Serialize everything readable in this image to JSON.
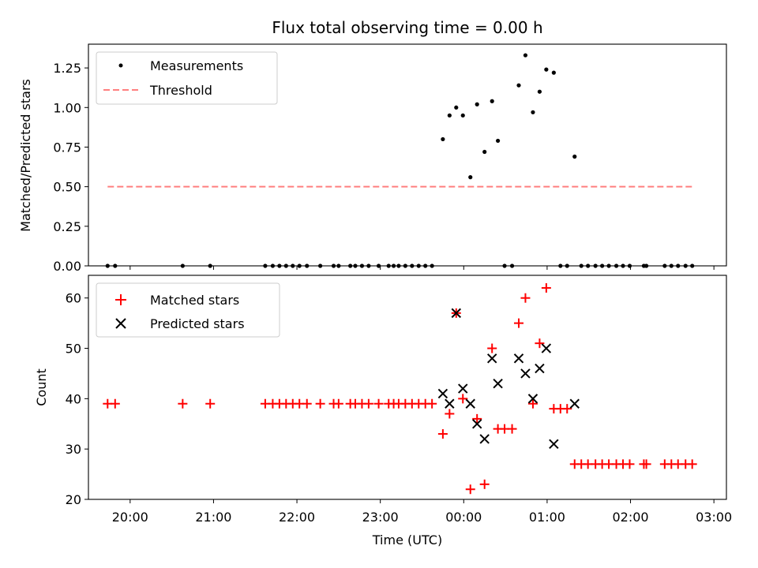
{
  "chart_data": {
    "type": "scatter",
    "title": "Flux total observing time = 0.00 h",
    "xlabel": "Time (UTC)",
    "x_unit": "hours relative to 00:00 UTC",
    "xlim": [
      -4.5,
      3.15
    ],
    "x_ticks": [
      {
        "value": -4,
        "label": "20:00"
      },
      {
        "value": -3,
        "label": "21:00"
      },
      {
        "value": -2,
        "label": "22:00"
      },
      {
        "value": -1,
        "label": "23:00"
      },
      {
        "value": 0,
        "label": "00:00"
      },
      {
        "value": 1,
        "label": "01:00"
      },
      {
        "value": 2,
        "label": "02:00"
      },
      {
        "value": 3,
        "label": "03:00"
      }
    ],
    "times": [
      -4.27,
      -4.18,
      -3.37,
      -3.04,
      -2.38,
      -2.29,
      -2.21,
      -2.13,
      -2.05,
      -1.97,
      -1.88,
      -1.72,
      -1.56,
      -1.5,
      -1.36,
      -1.3,
      -1.22,
      -1.14,
      -1.02,
      -0.9,
      -0.84,
      -0.78,
      -0.7,
      -0.62,
      -0.54,
      -0.46,
      -0.38,
      -0.25,
      -0.17,
      -0.09,
      -0.01,
      0.08,
      0.16,
      0.25,
      0.34,
      0.41,
      0.49,
      0.58,
      0.66,
      0.74,
      0.83,
      0.91,
      0.99,
      1.08,
      1.16,
      1.24,
      1.33,
      1.41,
      1.49,
      1.58,
      1.66,
      1.74,
      1.83,
      1.91,
      1.99,
      2.16,
      2.19,
      2.41,
      2.49,
      2.57,
      2.66,
      2.74
    ],
    "subplots": [
      {
        "ylabel": "Matched/Predicted stars",
        "ylim": [
          0,
          1.4
        ],
        "y_ticks": [
          {
            "value": 0,
            "label": "0.00"
          },
          {
            "value": 0.25,
            "label": "0.25"
          },
          {
            "value": 0.5,
            "label": "0.50"
          },
          {
            "value": 0.75,
            "label": "0.75"
          },
          {
            "value": 1.0,
            "label": "1.00"
          },
          {
            "value": 1.25,
            "label": "1.25"
          }
        ],
        "legend": {
          "position": "upper-left",
          "entries": [
            "Measurements",
            "Threshold"
          ]
        },
        "series": [
          {
            "name": "Measurements",
            "marker": "dot",
            "color": "#000000",
            "values": [
              0,
              0,
              0,
              0,
              0,
              0,
              0,
              0,
              0,
              0,
              0,
              0,
              0,
              0,
              0,
              0,
              0,
              0,
              0,
              0,
              0,
              0,
              0,
              0,
              0,
              0,
              0,
              0.8,
              0.95,
              1.0,
              0.95,
              0.56,
              1.02,
              0.72,
              1.04,
              0.79,
              0,
              0,
              1.14,
              1.33,
              0.97,
              1.1,
              1.24,
              1.22,
              0,
              0,
              0.69,
              0,
              0,
              0,
              0,
              0,
              0,
              0,
              0,
              0,
              0,
              0,
              0,
              0,
              0,
              0
            ]
          },
          {
            "name": "Threshold",
            "style": "dashed",
            "color": "#ff7f7f",
            "x": [
              -4.27,
              2.74
            ],
            "values": [
              0.5,
              0.5
            ]
          }
        ]
      },
      {
        "ylabel": "Count",
        "ylim": [
          20,
          64.5
        ],
        "y_ticks": [
          {
            "value": 20,
            "label": "20"
          },
          {
            "value": 30,
            "label": "30"
          },
          {
            "value": 40,
            "label": "40"
          },
          {
            "value": 50,
            "label": "50"
          },
          {
            "value": 60,
            "label": "60"
          }
        ],
        "legend": {
          "position": "upper-left",
          "entries": [
            "Matched stars",
            "Predicted stars"
          ]
        },
        "series": [
          {
            "name": "Matched stars",
            "marker": "plus",
            "color": "#ff0000",
            "values": [
              39,
              39,
              39,
              39,
              39,
              39,
              39,
              39,
              39,
              39,
              39,
              39,
              39,
              39,
              39,
              39,
              39,
              39,
              39,
              39,
              39,
              39,
              39,
              39,
              39,
              39,
              39,
              33,
              37,
              57,
              40,
              22,
              36,
              23,
              50,
              34,
              34,
              34,
              55,
              60,
              39,
              51,
              62,
              38,
              38,
              38,
              27,
              27,
              27,
              27,
              27,
              27,
              27,
              27,
              27,
              27,
              27,
              27,
              27,
              27,
              27,
              27
            ]
          },
          {
            "name": "Predicted stars",
            "marker": "x",
            "color": "#000000",
            "x": [
              -0.25,
              -0.17,
              -0.09,
              -0.01,
              0.08,
              0.16,
              0.25,
              0.34,
              0.41,
              0.66,
              0.74,
              0.83,
              0.91,
              0.99,
              1.08,
              1.33
            ],
            "values": [
              41,
              39,
              57,
              42,
              39,
              35,
              32,
              48,
              43,
              48,
              45,
              40,
              46,
              50,
              31,
              39
            ]
          }
        ]
      }
    ]
  }
}
